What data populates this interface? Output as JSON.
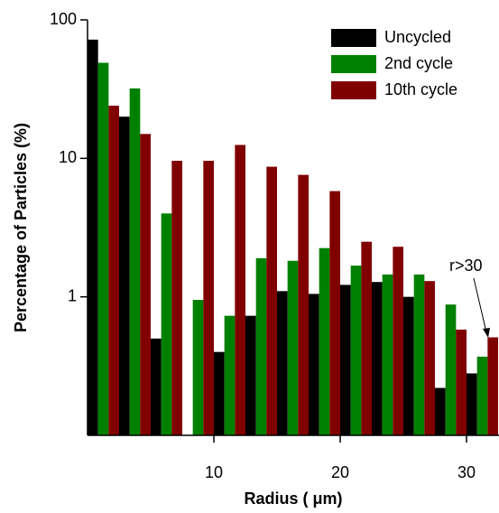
{
  "chart_data": {
    "type": "bar",
    "log_y": true,
    "x_label": "Radius ( μm)",
    "y_label": "Percentage of Particles (%)",
    "x": [
      1.25,
      3.75,
      6.25,
      8.75,
      11.25,
      13.75,
      16.25,
      18.75,
      21.25,
      23.75,
      26.25,
      28.75,
      31.25
    ],
    "series": [
      {
        "name": "Uncycled",
        "color": "#000000",
        "values": [
          72,
          20,
          0.5,
          null,
          0.4,
          0.73,
          1.1,
          1.05,
          1.22,
          1.28,
          1.0,
          0.22,
          0.28
        ]
      },
      {
        "name": "2nd cycle",
        "color": "#008000",
        "values": [
          49,
          32,
          4,
          0.95,
          0.73,
          1.9,
          1.82,
          2.25,
          1.68,
          1.45,
          1.45,
          0.88,
          0.37
        ]
      },
      {
        "name": "10th cycle",
        "color": "#800000",
        "values": [
          24,
          15,
          9.6,
          9.6,
          12.5,
          8.7,
          7.6,
          5.8,
          2.5,
          2.3,
          1.3,
          0.58,
          0.51
        ]
      }
    ],
    "xlim": [
      0,
      32.57
    ],
    "xticks": [
      10,
      20,
      30
    ],
    "ylim": [
      0.1,
      100
    ],
    "yticks": [
      1,
      10,
      100
    ],
    "annotation": "r>30",
    "legend": "top-right"
  }
}
